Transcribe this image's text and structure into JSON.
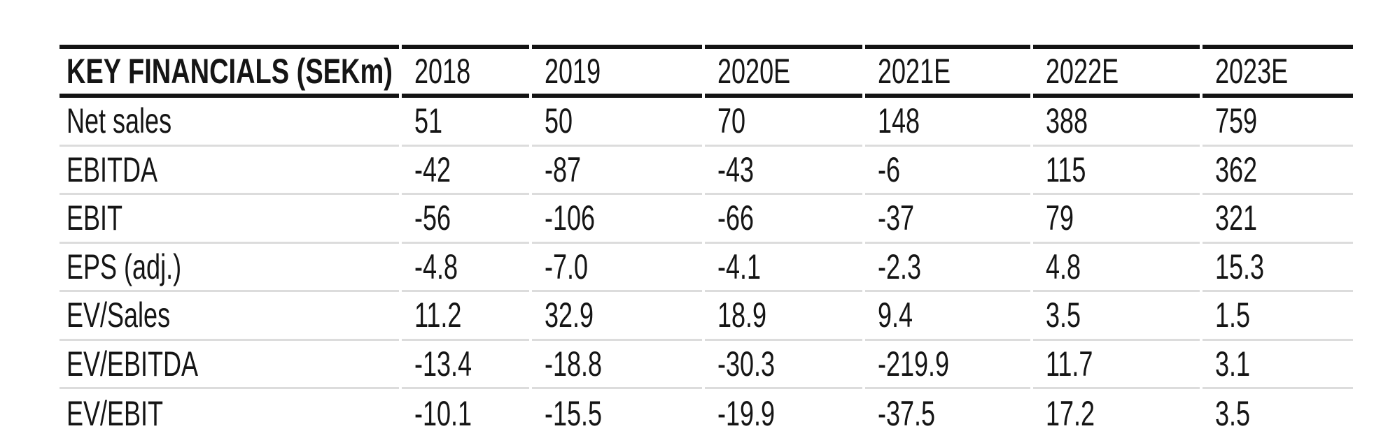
{
  "table": {
    "title": "KEY FINANCIALS (SEKm)",
    "header": {
      "years": [
        "2018",
        "2019",
        "2020E",
        "2021E",
        "2022E",
        "2023E"
      ]
    },
    "rows": [
      {
        "label": "Net sales",
        "values": [
          "51",
          "50",
          "70",
          "148",
          "388",
          "759"
        ]
      },
      {
        "label": "EBITDA",
        "values": [
          "-42",
          "-87",
          "-43",
          "-6",
          "115",
          "362"
        ]
      },
      {
        "label": "EBIT",
        "values": [
          "-56",
          "-106",
          "-66",
          "-37",
          "79",
          "321"
        ]
      },
      {
        "label": "EPS (adj.)",
        "values": [
          "-4.8",
          "-7.0",
          "-4.1",
          "-2.3",
          "4.8",
          "15.3"
        ]
      },
      {
        "label": "EV/Sales",
        "values": [
          "11.2",
          "32.9",
          "18.9",
          "9.4",
          "3.5",
          "1.5"
        ]
      },
      {
        "label": "EV/EBITDA",
        "values": [
          "-13.4",
          "-18.8",
          "-30.3",
          "-219.9",
          "11.7",
          "3.1"
        ]
      },
      {
        "label": "EV/EBIT",
        "values": [
          "-10.1",
          "-15.5",
          "-19.9",
          "-37.5",
          "17.2",
          "3.5"
        ]
      }
    ],
    "colors": {
      "rule_dark": "#131313",
      "rule_light": "#dcdcdc",
      "text": "#151515",
      "background": "#ffffff"
    }
  },
  "chart_data": {
    "type": "table",
    "title": "KEY FINANCIALS (SEKm)",
    "columns": [
      "2018",
      "2019",
      "2020E",
      "2021E",
      "2022E",
      "2023E"
    ],
    "series": [
      {
        "name": "Net sales",
        "values": [
          51,
          50,
          70,
          148,
          388,
          759
        ]
      },
      {
        "name": "EBITDA",
        "values": [
          -42,
          -87,
          -43,
          -6,
          115,
          362
        ]
      },
      {
        "name": "EBIT",
        "values": [
          -56,
          -106,
          -66,
          -37,
          79,
          321
        ]
      },
      {
        "name": "EPS (adj.)",
        "values": [
          -4.8,
          -7.0,
          -4.1,
          -2.3,
          4.8,
          15.3
        ]
      },
      {
        "name": "EV/Sales",
        "values": [
          11.2,
          32.9,
          18.9,
          9.4,
          3.5,
          1.5
        ]
      },
      {
        "name": "EV/EBITDA",
        "values": [
          -13.4,
          -18.8,
          -30.3,
          -219.9,
          11.7,
          3.1
        ]
      },
      {
        "name": "EV/EBIT",
        "values": [
          -10.1,
          -15.5,
          -19.9,
          -37.5,
          17.2,
          3.5
        ]
      }
    ]
  }
}
